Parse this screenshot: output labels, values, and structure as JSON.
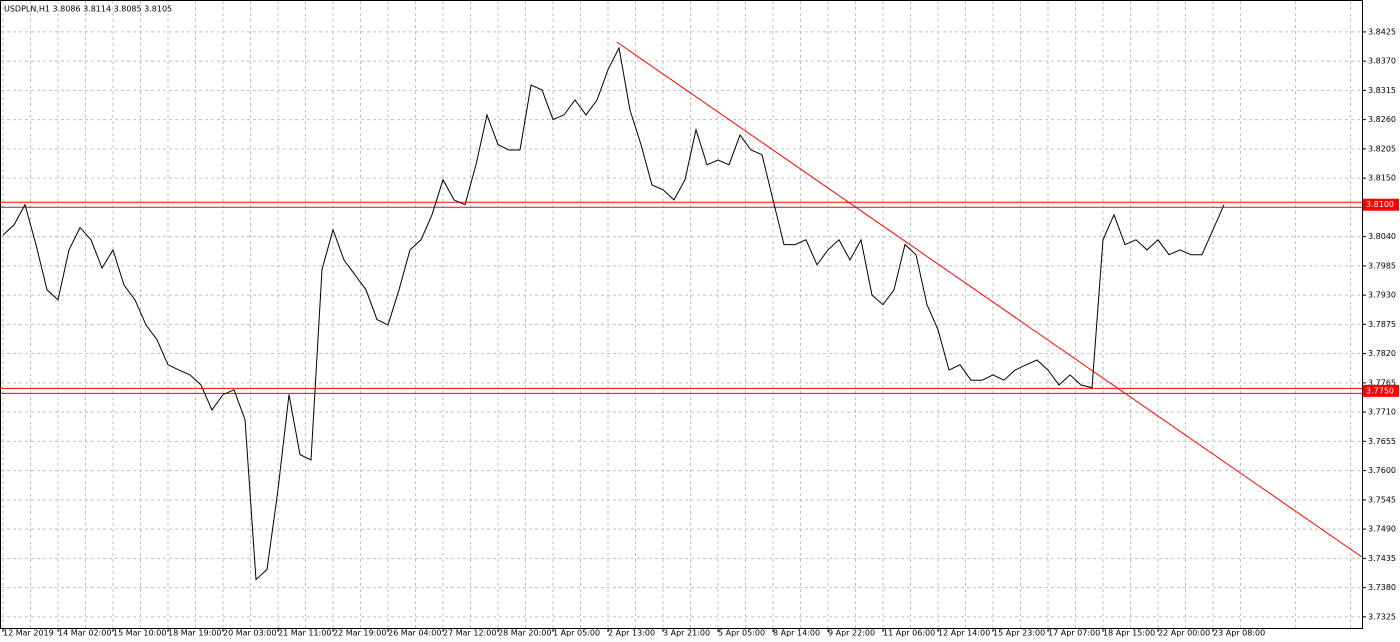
{
  "chart_data": {
    "type": "line",
    "title": "USDPLN,H1  3.8086 3.8114 3.8085 3.8105",
    "categories": [
      "12 Mar 2019",
      null,
      null,
      null,
      null,
      "14 Mar 02:00",
      null,
      null,
      null,
      null,
      "15 Mar 10:00",
      null,
      null,
      null,
      null,
      "18 Mar 19:00",
      null,
      null,
      null,
      null,
      "20 Mar 03:00",
      null,
      null,
      null,
      null,
      "21 Mar 11:00",
      null,
      null,
      null,
      null,
      "22 Mar 19:00",
      null,
      null,
      null,
      null,
      "26 Mar 04:00",
      null,
      null,
      null,
      null,
      "27 Mar 12:00",
      null,
      null,
      null,
      null,
      "28 Mar 20:00",
      null,
      null,
      null,
      null,
      "1 Apr 05:00",
      null,
      null,
      null,
      null,
      "2 Apr 13:00",
      null,
      null,
      null,
      null,
      "3 Apr 21:00",
      null,
      null,
      null,
      null,
      "5 Apr 05:00",
      null,
      null,
      null,
      null,
      "8 Apr 14:00",
      null,
      null,
      null,
      null,
      "9 Apr 22:00",
      null,
      null,
      null,
      null,
      "11 Apr 06:00",
      null,
      null,
      null,
      null,
      "12 Apr 14:00",
      null,
      null,
      null,
      null,
      "15 Apr 23:00",
      null,
      null,
      null,
      null,
      "17 Apr 07:00",
      null,
      null,
      null,
      null,
      "18 Apr 15:00",
      null,
      null,
      null,
      null,
      "22 Apr 00:00",
      null,
      null,
      null,
      null,
      "23 Apr 08:00",
      null
    ],
    "series": [
      {
        "name": "USDPLN",
        "color": "#000000",
        "values": [
          3.8043,
          3.8062,
          3.81,
          3.8025,
          3.794,
          3.7921,
          3.8015,
          3.8057,
          3.8034,
          3.7981,
          3.8015,
          3.7949,
          3.7921,
          3.7874,
          3.7846,
          3.7799,
          3.7789,
          3.778,
          3.7761,
          3.7714,
          3.7743,
          3.7752,
          3.7696,
          3.7395,
          3.7414,
          3.7564,
          3.7743,
          3.763,
          3.762,
          3.7978,
          3.8053,
          3.7996,
          3.7968,
          3.794,
          3.7884,
          3.7874,
          3.794,
          3.8015,
          3.8034,
          3.8081,
          3.8147,
          3.8109,
          3.81,
          3.8175,
          3.8269,
          3.8213,
          3.8203,
          3.8203,
          3.8325,
          3.8316,
          3.826,
          3.8269,
          3.8297,
          3.8269,
          3.8297,
          3.8354,
          3.8395,
          3.8278,
          3.8213,
          3.8137,
          3.8128,
          3.8109,
          3.8147,
          3.8241,
          3.8175,
          3.8184,
          3.8175,
          3.8231,
          3.8203,
          3.8194,
          3.8109,
          3.8025,
          3.8025,
          3.8034,
          3.7987,
          3.8015,
          3.8034,
          3.7996,
          3.8034,
          3.793,
          3.7912,
          3.794,
          3.8025,
          3.8006,
          3.7912,
          3.7865,
          3.7789,
          3.7799,
          3.777,
          3.777,
          3.778,
          3.777,
          3.7789,
          3.7799,
          3.7808,
          3.7789,
          3.7761,
          3.778,
          3.7761,
          3.7756,
          3.8034,
          3.8081,
          3.8025,
          3.8034,
          3.8015,
          3.8034,
          3.8006,
          3.8015,
          3.8006,
          3.8006,
          3.8053,
          3.81
        ]
      }
    ],
    "ylim": [
      3.7304,
      3.8485
    ],
    "yticks": [
      3.8425,
      {
        "value": 3.837,
        "label": "3.8370"
      },
      3.8315,
      {
        "value": 3.826,
        "label": "3.8260"
      },
      3.8205,
      {
        "value": 3.815,
        "label": "3.8150"
      },
      {
        "value": 3.804,
        "label": "3.8040"
      },
      3.7985,
      {
        "value": 3.793,
        "label": "3.7930"
      },
      3.7875,
      {
        "value": 3.782,
        "label": "3.7820"
      },
      3.7765,
      {
        "value": 3.771,
        "label": "3.7710"
      },
      3.7655,
      {
        "value": 3.76,
        "label": "3.7600"
      },
      3.7545,
      {
        "value": 3.749,
        "label": "3.7490"
      },
      3.7435,
      {
        "value": 3.738,
        "label": "3.7380"
      },
      3.7325
    ],
    "grid": true,
    "hlines": [
      {
        "value": 3.81,
        "label": "3.8100",
        "color": "#ff0000"
      },
      {
        "value": 3.775,
        "label": "3.7750",
        "color": "#ff0000"
      }
    ],
    "trendline": {
      "color": "#ff0000",
      "x": [
        55.8,
        123.5
      ],
      "values": [
        3.8406,
        3.7438
      ]
    }
  }
}
